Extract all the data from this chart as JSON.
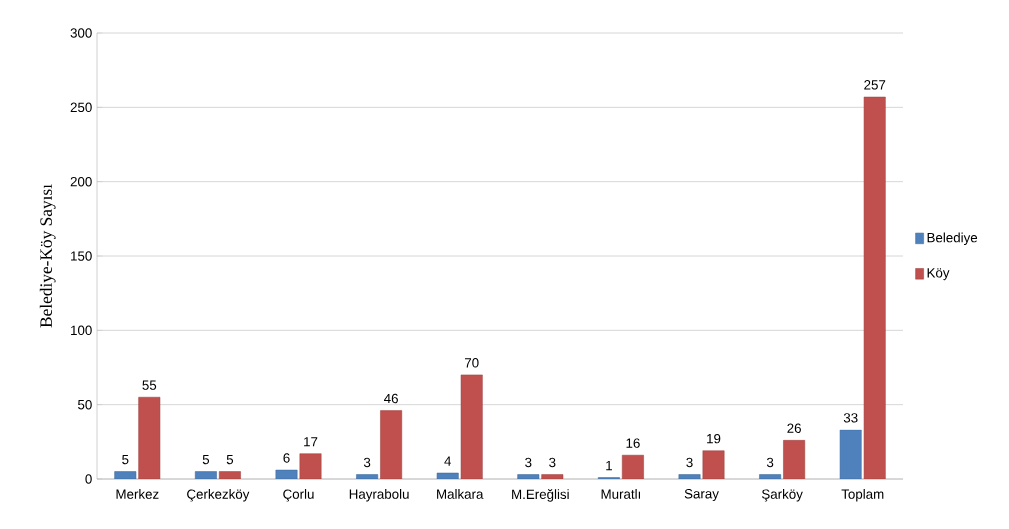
{
  "chart_data": {
    "type": "bar",
    "ylabel": "Belediye-Köy Sayısı",
    "categories": [
      "Merkez",
      "Çerkezköy",
      "Çorlu",
      "Hayrabolu",
      "Malkara",
      "M.Ereğlisi",
      "Muratlı",
      "Saray",
      "Şarköy",
      "Toplam"
    ],
    "series": [
      {
        "name": "Belediye",
        "color": "#4f81bd",
        "values": [
          5,
          5,
          6,
          3,
          4,
          3,
          1,
          3,
          3,
          33
        ]
      },
      {
        "name": "Köy",
        "color": "#c0504d",
        "values": [
          55,
          5,
          17,
          46,
          70,
          3,
          16,
          19,
          26,
          257
        ]
      }
    ],
    "ylim": [
      0,
      300
    ],
    "yticks": [
      0,
      50,
      100,
      150,
      200,
      250,
      300
    ],
    "grid": "y",
    "legend": "right",
    "data_labels": true
  }
}
